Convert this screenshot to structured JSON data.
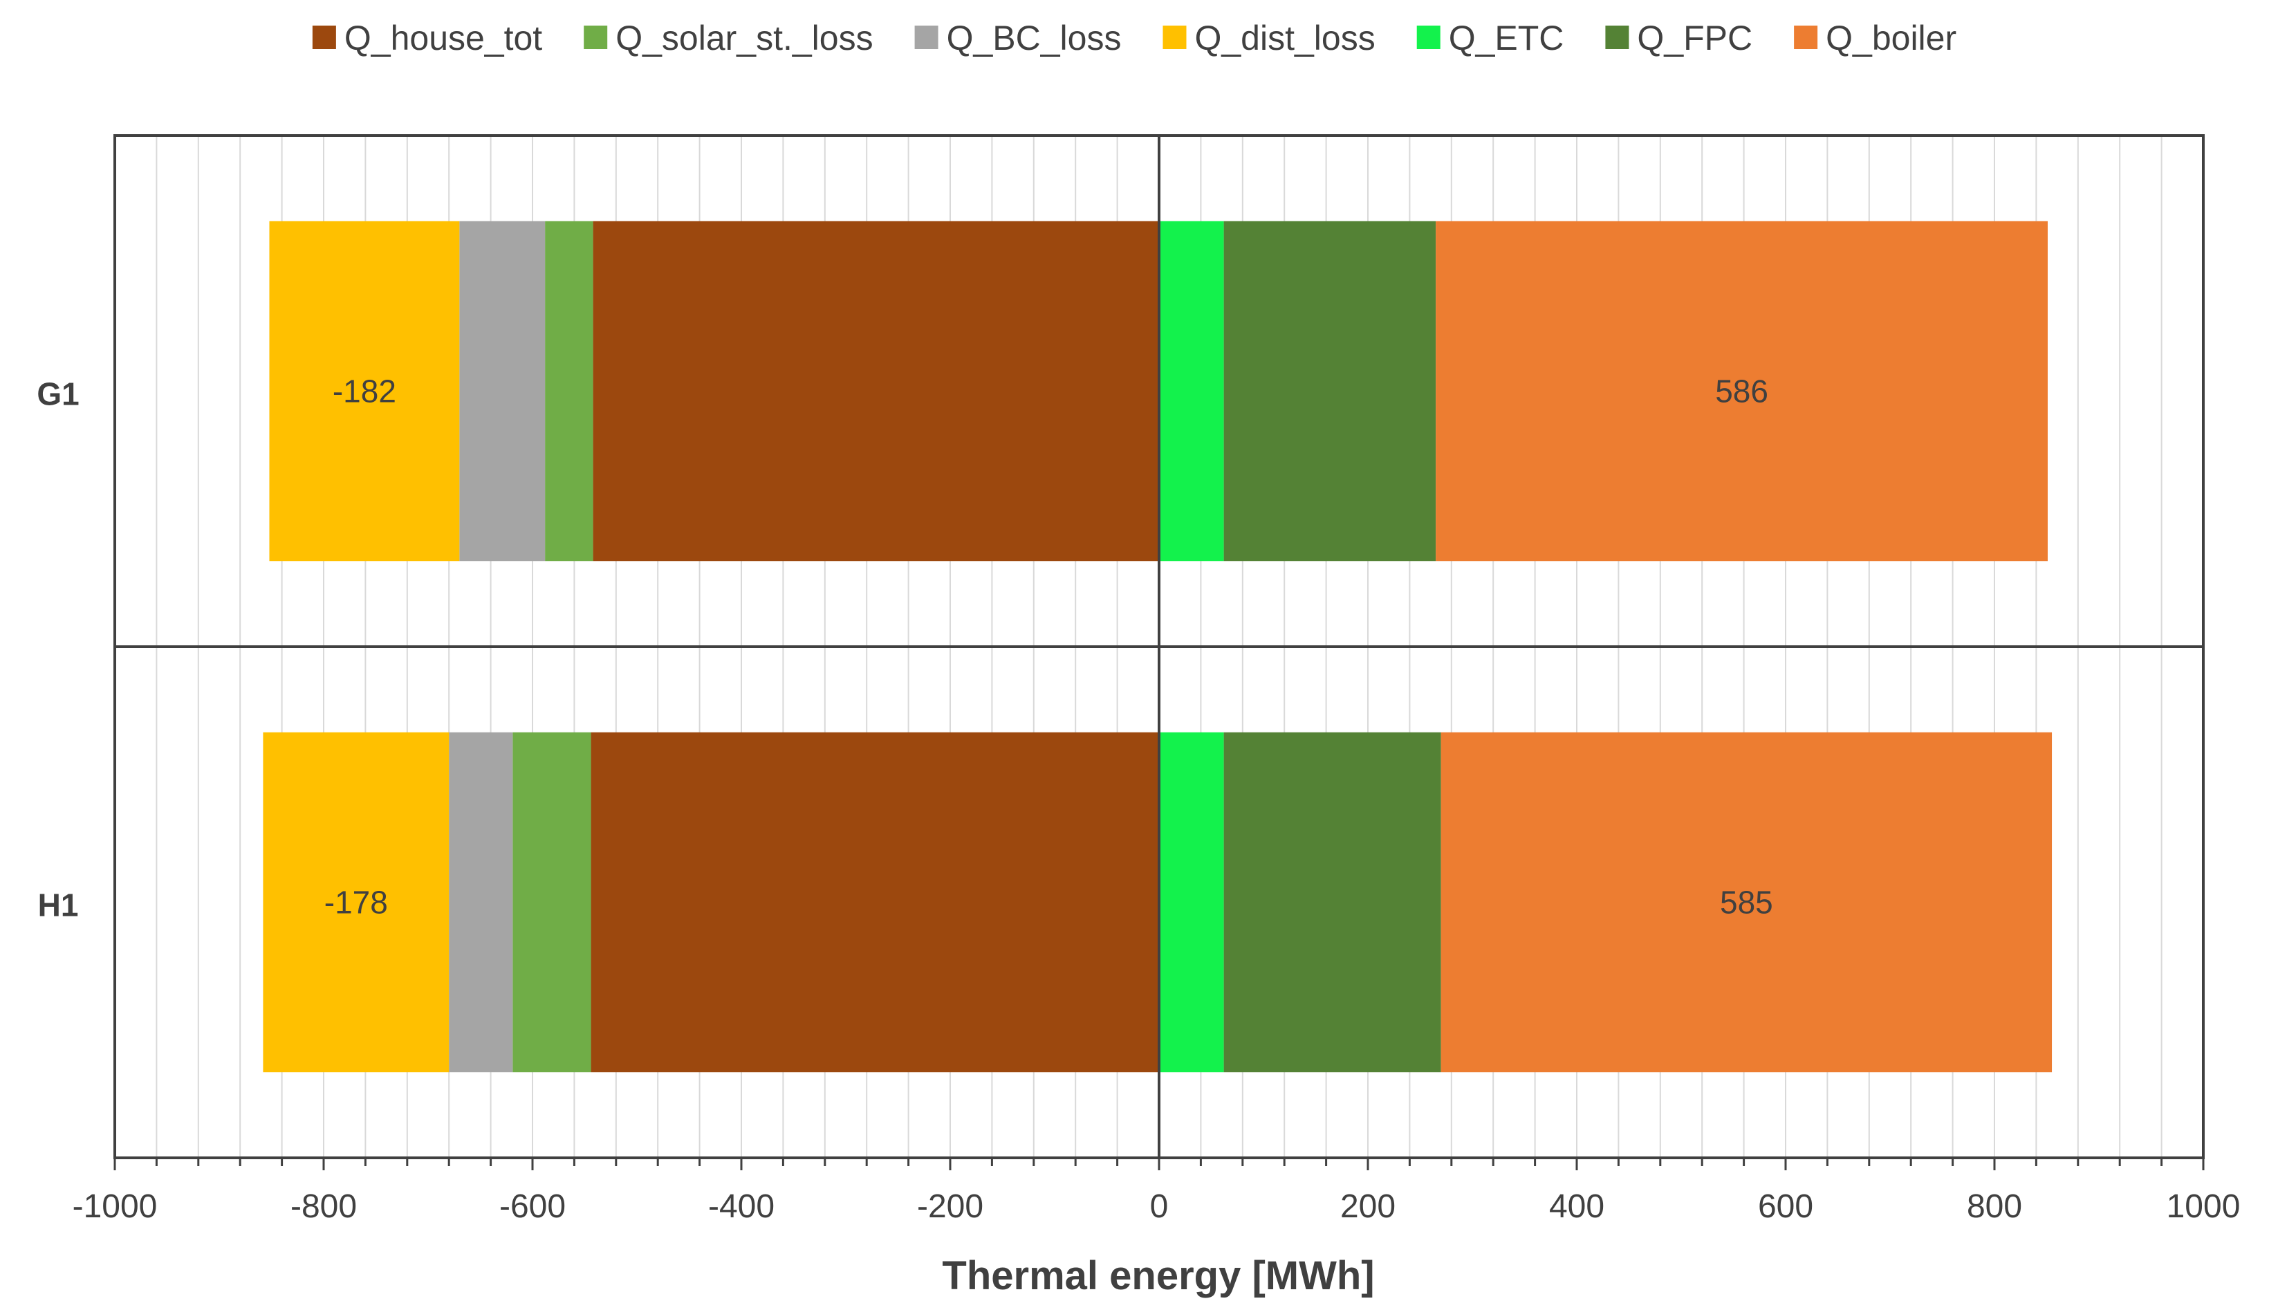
{
  "chart_data": {
    "type": "bar",
    "orientation": "horizontal",
    "stacked": true,
    "title": "",
    "xlabel": "Thermal energy [MWh]",
    "ylabel": "",
    "xlim": [
      -1000,
      1000
    ],
    "xticks": [
      -1000,
      -800,
      -600,
      -400,
      -200,
      0,
      200,
      400,
      600,
      800,
      1000
    ],
    "minor_tick_step": 40,
    "grid": "vertical minor gridlines",
    "legend_position": "top",
    "categories": [
      "G1",
      "H1"
    ],
    "series": [
      {
        "name": "Q_house_tot",
        "color": "#9C480E",
        "values": [
          -542,
          -544
        ]
      },
      {
        "name": "Q_solar_st._loss",
        "color": "#70AD47",
        "values": [
          -46,
          -75
        ]
      },
      {
        "name": "Q_BC_loss",
        "color": "#A5A5A5",
        "values": [
          -82,
          -61
        ]
      },
      {
        "name": "Q_dist_loss",
        "color": "#FFC000",
        "values": [
          -182,
          -178
        ]
      },
      {
        "name": "Q_ETC",
        "color": "#13F24C",
        "values": [
          62,
          62
        ]
      },
      {
        "name": "Q_FPC",
        "color": "#548235",
        "values": [
          203,
          208
        ]
      },
      {
        "name": "Q_boiler",
        "color": "#ED7D31",
        "values": [
          586,
          585
        ]
      }
    ],
    "data_labels": [
      {
        "category": "G1",
        "series": "Q_dist_loss",
        "text": "-182"
      },
      {
        "category": "G1",
        "series": "Q_boiler",
        "text": "586"
      },
      {
        "category": "H1",
        "series": "Q_dist_loss",
        "text": "-178"
      },
      {
        "category": "H1",
        "series": "Q_boiler",
        "text": "585"
      }
    ]
  }
}
